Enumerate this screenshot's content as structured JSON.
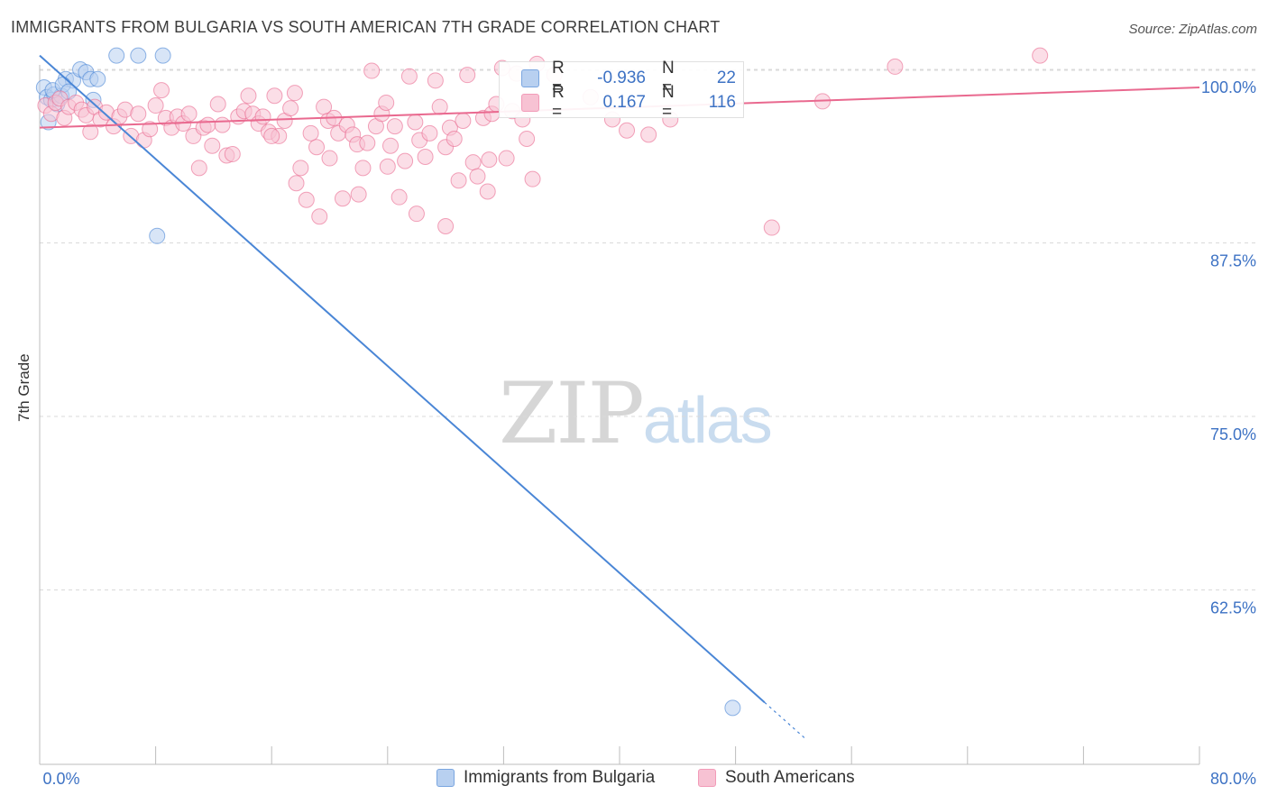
{
  "header": {
    "title": "IMMIGRANTS FROM BULGARIA VS SOUTH AMERICAN 7TH GRADE CORRELATION CHART",
    "source": "Source: ZipAtlas.com"
  },
  "watermark": {
    "zip": "ZIP",
    "atlas": "atlas"
  },
  "stats": {
    "rows": [
      {
        "r_label": "R =",
        "r_value": "-0.936",
        "n_label": "N =",
        "n_value": "22",
        "color": "#7aa6e0"
      },
      {
        "r_label": "R =",
        "r_value": "0.167",
        "n_label": "N =",
        "n_value": "116",
        "color": "#f29bb8"
      }
    ]
  },
  "colors": {
    "blue": "#4a86d6",
    "blue_fill": "#b8d0f0",
    "pink": "#e9698f",
    "pink_fill": "#f7c2d3",
    "axis_text": "#3d72c4",
    "grid": "#d9d9d9"
  },
  "chart_data": {
    "type": "scatter",
    "title": "IMMIGRANTS FROM BULGARIA VS SOUTH AMERICAN 7TH GRADE CORRELATION CHART",
    "xlabel": "",
    "ylabel": "7th Grade",
    "xlim": [
      0,
      80
    ],
    "ylim": [
      48.5,
      101
    ],
    "x_tick_labels": [
      "0.0%",
      "80.0%"
    ],
    "y_ticks": [
      100.0,
      87.5,
      75.0,
      62.5
    ],
    "y_tick_labels": [
      "100.0%",
      "87.5%",
      "75.0%",
      "62.5%"
    ],
    "legend_position": "bottom-center",
    "series": [
      {
        "name": "Immigrants from Bulgaria",
        "color": "#4a86d6",
        "fill": "#b8d0f0",
        "points": [
          [
            0.3,
            98.7
          ],
          [
            0.5,
            98.0
          ],
          [
            0.6,
            96.2
          ],
          [
            0.8,
            97.8
          ],
          [
            1.0,
            98.2
          ],
          [
            1.2,
            97.5
          ],
          [
            1.5,
            98.1
          ],
          [
            1.8,
            99.3
          ],
          [
            2.3,
            99.2
          ],
          [
            2.8,
            100.0
          ],
          [
            3.2,
            99.8
          ],
          [
            3.5,
            99.3
          ],
          [
            3.7,
            97.8
          ],
          [
            4.0,
            99.3
          ],
          [
            5.3,
            101.0
          ],
          [
            6.8,
            101.0
          ],
          [
            8.5,
            101.0
          ],
          [
            8.1,
            88.0
          ],
          [
            47.8,
            54.0
          ],
          [
            0.9,
            98.5
          ],
          [
            1.6,
            98.9
          ],
          [
            2.0,
            98.4
          ]
        ],
        "trend": {
          "x": [
            0.0,
            50.0
          ],
          "y": [
            101.0,
            54.4
          ]
        },
        "trend_dashed": {
          "x": [
            50.0,
            52.8
          ],
          "y": [
            54.4,
            51.8
          ]
        }
      },
      {
        "name": "South Americans",
        "color": "#e9698f",
        "fill": "#f7c2d3",
        "points": [
          [
            0.4,
            97.4
          ],
          [
            0.8,
            96.8
          ],
          [
            1.1,
            97.6
          ],
          [
            1.4,
            97.9
          ],
          [
            1.7,
            96.5
          ],
          [
            2.0,
            97.3
          ],
          [
            2.5,
            97.6
          ],
          [
            2.9,
            97.1
          ],
          [
            3.2,
            96.7
          ],
          [
            3.5,
            95.5
          ],
          [
            3.8,
            97.3
          ],
          [
            4.2,
            96.4
          ],
          [
            4.6,
            96.9
          ],
          [
            5.1,
            95.9
          ],
          [
            5.5,
            96.6
          ],
          [
            5.9,
            97.1
          ],
          [
            6.3,
            95.2
          ],
          [
            6.8,
            96.8
          ],
          [
            7.2,
            94.9
          ],
          [
            7.6,
            95.7
          ],
          [
            8.0,
            97.4
          ],
          [
            8.4,
            98.5
          ],
          [
            8.7,
            96.5
          ],
          [
            9.1,
            95.8
          ],
          [
            9.5,
            96.6
          ],
          [
            9.9,
            96.1
          ],
          [
            10.3,
            96.8
          ],
          [
            10.6,
            95.2
          ],
          [
            11.0,
            92.9
          ],
          [
            11.3,
            95.8
          ],
          [
            11.6,
            96.0
          ],
          [
            11.9,
            94.5
          ],
          [
            12.3,
            97.5
          ],
          [
            12.6,
            96.0
          ],
          [
            12.9,
            93.8
          ],
          [
            13.3,
            93.9
          ],
          [
            13.7,
            96.6
          ],
          [
            14.1,
            97.0
          ],
          [
            14.4,
            98.1
          ],
          [
            14.7,
            96.8
          ],
          [
            15.1,
            96.1
          ],
          [
            15.4,
            96.6
          ],
          [
            15.8,
            95.5
          ],
          [
            16.2,
            98.1
          ],
          [
            16.5,
            95.2
          ],
          [
            16.9,
            96.3
          ],
          [
            17.3,
            97.2
          ],
          [
            17.6,
            98.3
          ],
          [
            18.0,
            92.9
          ],
          [
            18.4,
            90.6
          ],
          [
            18.7,
            95.4
          ],
          [
            19.1,
            94.4
          ],
          [
            19.3,
            89.4
          ],
          [
            19.6,
            97.3
          ],
          [
            19.9,
            96.3
          ],
          [
            20.3,
            96.5
          ],
          [
            20.6,
            95.4
          ],
          [
            20.9,
            90.7
          ],
          [
            21.2,
            96.0
          ],
          [
            21.6,
            95.3
          ],
          [
            21.9,
            94.6
          ],
          [
            22.3,
            92.9
          ],
          [
            22.6,
            94.7
          ],
          [
            22.9,
            99.9
          ],
          [
            23.2,
            95.9
          ],
          [
            23.6,
            96.8
          ],
          [
            23.9,
            97.6
          ],
          [
            24.2,
            94.5
          ],
          [
            24.5,
            95.9
          ],
          [
            24.8,
            90.8
          ],
          [
            25.2,
            93.4
          ],
          [
            25.5,
            99.5
          ],
          [
            25.9,
            96.2
          ],
          [
            26.2,
            94.9
          ],
          [
            26.6,
            93.7
          ],
          [
            26.9,
            95.4
          ],
          [
            27.3,
            99.2
          ],
          [
            27.6,
            97.3
          ],
          [
            28.0,
            94.4
          ],
          [
            28.3,
            95.8
          ],
          [
            28.6,
            95.0
          ],
          [
            28.9,
            92.0
          ],
          [
            29.2,
            96.3
          ],
          [
            29.5,
            99.6
          ],
          [
            29.9,
            93.3
          ],
          [
            30.2,
            92.3
          ],
          [
            30.6,
            96.5
          ],
          [
            30.9,
            91.2
          ],
          [
            31.2,
            96.8
          ],
          [
            31.5,
            97.5
          ],
          [
            31.9,
            100.1
          ],
          [
            32.2,
            93.6
          ],
          [
            32.6,
            97.0
          ],
          [
            32.9,
            99.7
          ],
          [
            33.3,
            96.4
          ],
          [
            33.6,
            95.0
          ],
          [
            34.0,
            92.1
          ],
          [
            34.3,
            100.4
          ],
          [
            35.5,
            99.6
          ],
          [
            38.0,
            98.0
          ],
          [
            39.5,
            96.4
          ],
          [
            40.5,
            95.6
          ],
          [
            42.0,
            95.3
          ],
          [
            43.5,
            96.4
          ],
          [
            50.5,
            88.6
          ],
          [
            54.0,
            97.7
          ],
          [
            59.0,
            100.2
          ],
          [
            69.0,
            101.0
          ],
          [
            16.0,
            95.2
          ],
          [
            17.7,
            91.8
          ],
          [
            20.0,
            93.6
          ],
          [
            22.0,
            91.0
          ],
          [
            24.0,
            93.0
          ],
          [
            26.0,
            89.6
          ],
          [
            28.0,
            88.7
          ],
          [
            31.0,
            93.5
          ]
        ],
        "trend": {
          "x": [
            0.0,
            80.0
          ],
          "y": [
            95.8,
            98.7
          ]
        }
      }
    ]
  },
  "legend": {
    "items": [
      {
        "label": "Immigrants from Bulgaria",
        "color": "#7aa6e0",
        "fill": "#b8d0f0"
      },
      {
        "label": "South Americans",
        "color": "#f29bb8",
        "fill": "#f7c2d3"
      }
    ]
  }
}
